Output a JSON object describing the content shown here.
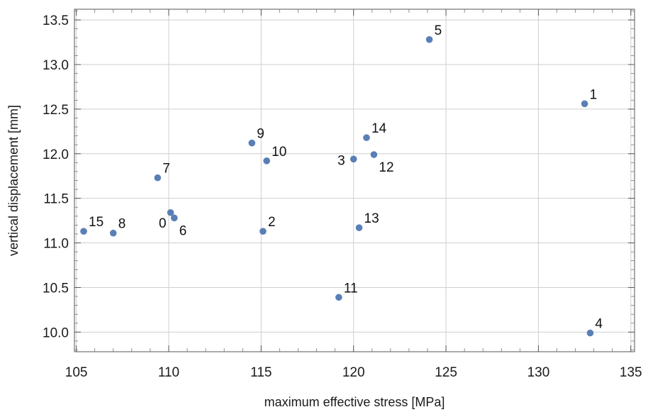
{
  "chart_data": {
    "type": "scatter",
    "xlabel": "maximum effective stress [MPa]",
    "ylabel": "vertical displacement [mm]",
    "xlim": [
      104.9,
      135.2
    ],
    "ylim": [
      9.78,
      13.62
    ],
    "xticks": [
      105,
      110,
      115,
      120,
      125,
      130,
      135
    ],
    "yticks": [
      10.0,
      10.5,
      11.0,
      11.5,
      12.0,
      12.5,
      13.0,
      13.5
    ],
    "grid": true,
    "marker_color": "#5a7fb6",
    "points": [
      {
        "label": "0",
        "x": 110.1,
        "y": 11.34,
        "label_pos": "lower-left"
      },
      {
        "label": "1",
        "x": 132.5,
        "y": 12.56,
        "label_pos": "upper-right"
      },
      {
        "label": "2",
        "x": 115.1,
        "y": 11.13,
        "label_pos": "upper-right"
      },
      {
        "label": "3",
        "x": 120.0,
        "y": 11.94,
        "label_pos": "left"
      },
      {
        "label": "4",
        "x": 132.8,
        "y": 9.99,
        "label_pos": "upper-right"
      },
      {
        "label": "5",
        "x": 124.1,
        "y": 13.28,
        "label_pos": "upper-right"
      },
      {
        "label": "6",
        "x": 110.3,
        "y": 11.28,
        "label_pos": "lower-right"
      },
      {
        "label": "7",
        "x": 109.4,
        "y": 11.73,
        "label_pos": "upper-right"
      },
      {
        "label": "8",
        "x": 107.0,
        "y": 11.11,
        "label_pos": "upper-right"
      },
      {
        "label": "9",
        "x": 114.5,
        "y": 12.12,
        "label_pos": "upper-right"
      },
      {
        "label": "10",
        "x": 115.3,
        "y": 11.92,
        "label_pos": "upper-right"
      },
      {
        "label": "11",
        "x": 119.2,
        "y": 10.39,
        "label_pos": "upper-right"
      },
      {
        "label": "12",
        "x": 121.1,
        "y": 11.99,
        "label_pos": "lower-right"
      },
      {
        "label": "13",
        "x": 120.3,
        "y": 11.17,
        "label_pos": "upper-right"
      },
      {
        "label": "14",
        "x": 120.7,
        "y": 12.18,
        "label_pos": "upper-right"
      },
      {
        "label": "15",
        "x": 105.4,
        "y": 11.13,
        "label_pos": "upper-right"
      }
    ]
  }
}
